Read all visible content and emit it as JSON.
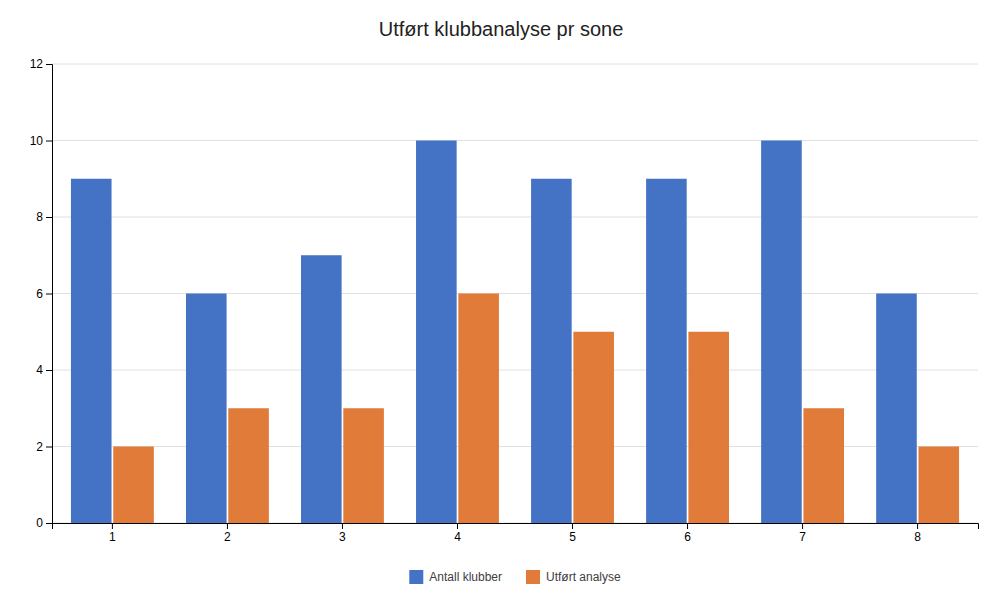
{
  "chart_data": {
    "type": "bar",
    "title": "Utført klubbanalyse pr sone",
    "categories": [
      1,
      2,
      3,
      4,
      5,
      6,
      7,
      8
    ],
    "series": [
      {
        "name": "Antall klubber",
        "color": "#4472C4",
        "values": [
          9,
          6,
          7,
          10,
          9,
          9,
          10,
          6
        ]
      },
      {
        "name": "Utført analyse",
        "color": "#E07B39",
        "values": [
          2,
          3,
          3,
          6,
          5,
          5,
          3,
          2
        ]
      }
    ],
    "ylim": [
      0,
      12
    ],
    "yticks": [
      0,
      2,
      4,
      6,
      8,
      10,
      12
    ],
    "grid": true,
    "legend": "bottom"
  }
}
